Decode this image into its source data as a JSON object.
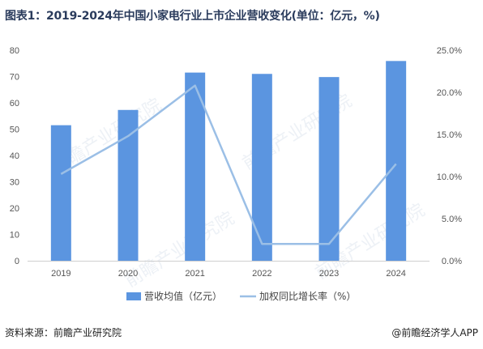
{
  "title": "图表1：2019-2024年中国小家电行业上市企业营收变化(单位：亿元，%)",
  "source": "资料来源：前瞻产业研究院",
  "brand": "@前瞻经济学人APP",
  "watermark": "前瞻产业研究院",
  "chart_data": {
    "type": "bar+line",
    "categories": [
      "2019",
      "2020",
      "2021",
      "2022",
      "2023",
      "2024"
    ],
    "series": [
      {
        "name": "营收均值（亿元）",
        "type": "bar",
        "axis": "left",
        "color": "#5b95e0",
        "values": [
          51.5,
          57.3,
          71.5,
          71.0,
          69.8,
          75.9
        ]
      },
      {
        "name": "加权同比增长率（%）",
        "type": "line",
        "axis": "right",
        "color": "#9bbfe6",
        "values": [
          10.3,
          14.8,
          20.8,
          2.0,
          2.0,
          11.5
        ]
      }
    ],
    "y_left": {
      "min": 0,
      "max": 80,
      "ticks": [
        "0",
        "10",
        "20",
        "30",
        "40",
        "50",
        "60",
        "70",
        "80"
      ]
    },
    "y_right": {
      "min": 0,
      "max": 25,
      "ticks": [
        "0.0%",
        "5.0%",
        "10.0%",
        "15.0%",
        "20.0%",
        "25.0%"
      ]
    },
    "legend_position": "bottom-center",
    "grid": false
  }
}
